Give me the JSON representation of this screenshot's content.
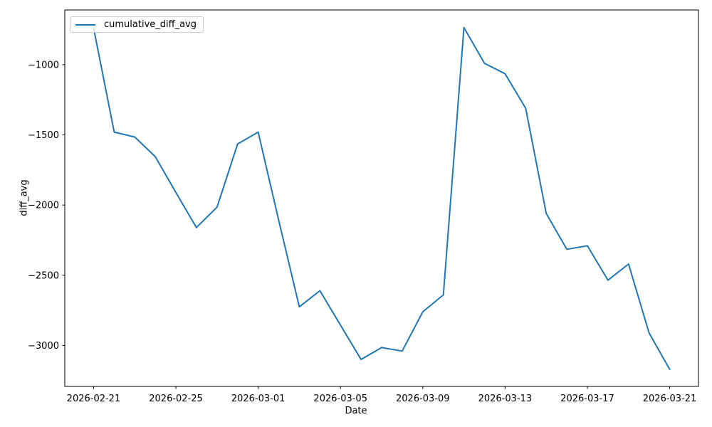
{
  "figure": {
    "background": "#ffffff"
  },
  "chart_data": {
    "type": "line",
    "title": "",
    "xlabel": "Date",
    "ylabel": "diff_avg",
    "legend": {
      "label": "cumulative_diff_avg",
      "position": "upper-left"
    },
    "line_color": "#1f77b4",
    "axis_color": "#000000",
    "grid": false,
    "x": [
      "2026-02-21",
      "2026-02-22",
      "2026-02-23",
      "2026-02-24",
      "2026-02-25",
      "2026-02-26",
      "2026-02-27",
      "2026-02-28",
      "2026-03-01",
      "2026-03-02",
      "2026-03-03",
      "2026-03-04",
      "2026-03-05",
      "2026-03-06",
      "2026-03-07",
      "2026-03-08",
      "2026-03-09",
      "2026-03-10",
      "2026-03-11",
      "2026-03-12",
      "2026-03-13",
      "2026-03-14",
      "2026-03-15",
      "2026-03-16",
      "2026-03-17",
      "2026-03-18",
      "2026-03-19",
      "2026-03-20",
      "2026-03-21"
    ],
    "series": [
      {
        "name": "cumulative_diff_avg",
        "values": [
          -740,
          -1480,
          -1515,
          -1655,
          -1910,
          -2160,
          -2015,
          -1565,
          -1480,
          -2110,
          -2725,
          -2610,
          -2855,
          -3100,
          -3015,
          -3040,
          -2760,
          -2640,
          -735,
          -990,
          -1065,
          -1310,
          -2060,
          -2315,
          -2290,
          -2535,
          -2420,
          -2910,
          -3170
        ]
      }
    ],
    "x_ticks": {
      "indices": [
        0,
        4,
        8,
        12,
        16,
        20,
        24,
        28
      ],
      "labels": [
        "2026-02-21",
        "2026-02-25",
        "2026-03-01",
        "2026-03-05",
        "2026-03-09",
        "2026-03-13",
        "2026-03-17",
        "2026-03-21"
      ]
    },
    "y_ticks": {
      "values": [
        -1000,
        -1500,
        -2000,
        -2500,
        -3000
      ],
      "labels": [
        "−1000",
        "−1500",
        "−2000",
        "−2500",
        "−3000"
      ]
    },
    "xlim_days": [
      -1.4,
      29.4
    ],
    "ylim": [
      -3292,
      -610
    ]
  }
}
